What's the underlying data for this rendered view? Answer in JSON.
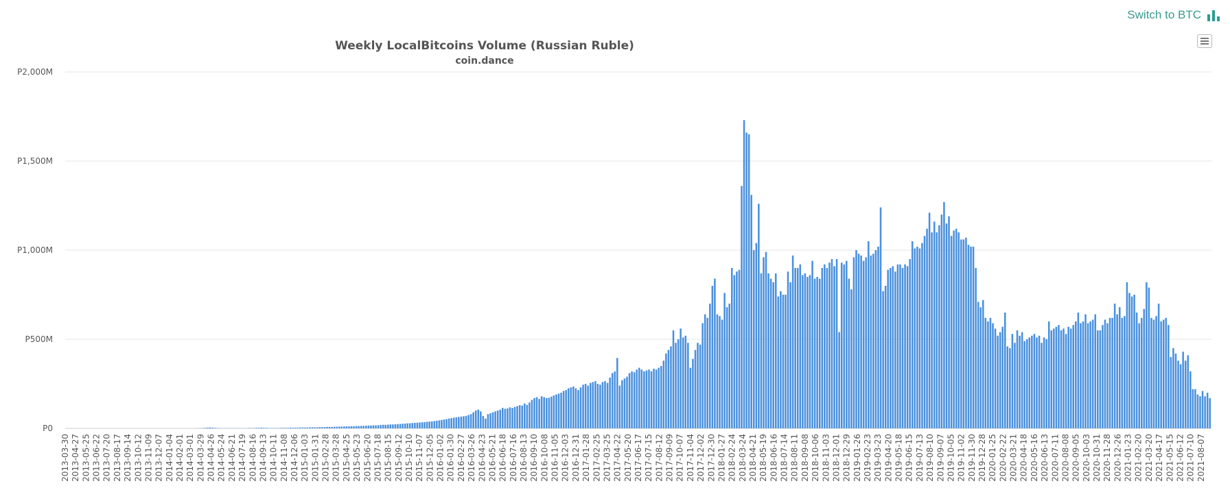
{
  "header": {
    "switch_label": "Switch to BTC",
    "switch_icon": "bar-chart-icon",
    "menu_icon": "hamburger-menu-icon"
  },
  "colors": {
    "bar": "#4a90dd",
    "accent": "#2a9d8f",
    "grid": "#e6e6e6",
    "text": "#555555"
  },
  "chart_data": {
    "type": "bar",
    "title": "Weekly LocalBitcoins Volume (Russian Ruble)",
    "subtitle": "coin.dance",
    "xlabel": "",
    "ylabel": "",
    "ylim": [
      0,
      2000
    ],
    "yticks": [
      {
        "value": 0,
        "label": "P0"
      },
      {
        "value": 500,
        "label": "P500M"
      },
      {
        "value": 1000,
        "label": "P1,000M"
      },
      {
        "value": 1500,
        "label": "P1,500M"
      },
      {
        "value": 2000,
        "label": "P2,000M"
      }
    ],
    "grid": true,
    "legend": "none",
    "x_tick_labels": [
      "2013-03-30",
      "2013-04-27",
      "2013-05-25",
      "2013-06-22",
      "2013-07-20",
      "2013-08-17",
      "2013-09-14",
      "2013-10-12",
      "2013-11-09",
      "2013-12-07",
      "2014-01-04",
      "2014-02-01",
      "2014-03-01",
      "2014-03-29",
      "2014-04-26",
      "2014-05-24",
      "2014-06-21",
      "2014-07-19",
      "2014-08-16",
      "2014-09-13",
      "2014-10-11",
      "2014-11-08",
      "2014-12-06",
      "2015-01-03",
      "2015-01-31",
      "2015-02-28",
      "2015-03-28",
      "2015-04-25",
      "2015-05-23",
      "2015-06-20",
      "2015-07-18",
      "2015-08-15",
      "2015-09-12",
      "2015-10-10",
      "2015-11-07",
      "2015-12-05",
      "2016-01-02",
      "2016-01-30",
      "2016-02-27",
      "2016-03-26",
      "2016-04-23",
      "2016-05-21",
      "2016-06-18",
      "2016-07-16",
      "2016-08-13",
      "2016-09-10",
      "2016-10-08",
      "2016-11-05",
      "2016-12-03",
      "2016-12-31",
      "2017-01-28",
      "2017-02-25",
      "2017-03-25",
      "2017-04-22",
      "2017-05-20",
      "2017-06-17",
      "2017-07-15",
      "2017-08-12",
      "2017-09-09",
      "2017-10-07",
      "2017-11-04",
      "2017-12-02",
      "2017-12-30",
      "2018-01-27",
      "2018-02-24",
      "2018-03-24",
      "2018-04-21",
      "2018-05-19",
      "2018-06-16",
      "2018-07-14",
      "2018-08-11",
      "2018-09-08",
      "2018-10-06",
      "2018-11-03",
      "2018-12-01",
      "2018-12-29",
      "2019-01-26",
      "2019-02-23",
      "2019-03-23",
      "2019-04-20",
      "2019-05-18",
      "2019-06-15",
      "2019-07-13",
      "2019-08-10",
      "2019-09-07",
      "2019-10-05",
      "2019-11-02",
      "2019-11-30",
      "2019-12-28",
      "2020-01-25",
      "2020-02-22",
      "2020-03-21",
      "2020-04-18",
      "2020-05-16",
      "2020-06-13",
      "2020-07-11",
      "2020-08-08",
      "2020-09-05",
      "2020-10-03",
      "2020-10-31",
      "2020-11-28",
      "2020-12-26",
      "2021-01-23",
      "2021-02-20",
      "2021-03-20",
      "2021-04-17",
      "2021-05-15",
      "2021-06-12",
      "2021-07-10",
      "2021-08-07"
    ],
    "values": [
      0,
      0,
      0,
      0,
      0,
      0,
      0,
      0,
      0,
      0,
      0,
      0,
      0,
      0,
      0,
      0,
      0,
      0,
      0,
      0,
      0,
      0,
      0,
      0,
      0,
      0,
      0,
      0,
      0,
      0,
      0,
      0,
      0,
      0,
      0,
      0,
      0,
      0,
      0,
      0,
      0,
      0,
      0,
      0,
      0,
      0,
      0,
      0,
      0,
      0,
      0,
      0,
      0,
      0,
      1,
      1,
      2,
      3,
      4,
      5,
      4,
      3,
      2,
      1,
      1,
      1,
      1,
      1,
      1,
      1,
      1,
      1,
      1,
      1,
      1,
      2,
      2,
      2,
      3,
      3,
      4,
      3,
      3,
      2,
      2,
      2,
      2,
      2,
      3,
      3,
      3,
      3,
      4,
      4,
      4,
      4,
      5,
      5,
      5,
      5,
      6,
      6,
      6,
      6,
      7,
      7,
      7,
      8,
      8,
      8,
      9,
      9,
      10,
      10,
      11,
      11,
      11,
      12,
      12,
      13,
      13,
      14,
      14,
      15,
      16,
      16,
      17,
      17,
      18,
      19,
      20,
      20,
      21,
      22,
      22,
      23,
      24,
      25,
      26,
      27,
      28,
      29,
      30,
      31,
      32,
      33,
      34,
      35,
      37,
      38,
      39,
      41,
      43,
      45,
      47,
      50,
      52,
      55,
      58,
      60,
      62,
      64,
      66,
      68,
      70,
      75,
      80,
      90,
      100,
      105,
      95,
      70,
      55,
      80,
      85,
      90,
      95,
      100,
      105,
      115,
      110,
      112,
      118,
      115,
      120,
      125,
      130,
      128,
      140,
      132,
      145,
      160,
      170,
      175,
      165,
      180,
      175,
      170,
      172,
      178,
      185,
      190,
      195,
      200,
      210,
      215,
      225,
      230,
      235,
      225,
      215,
      230,
      245,
      250,
      240,
      255,
      260,
      265,
      250,
      245,
      260,
      265,
      255,
      285,
      310,
      320,
      395,
      240,
      270,
      280,
      290,
      310,
      320,
      315,
      330,
      340,
      330,
      320,
      325,
      330,
      320,
      335,
      330,
      340,
      350,
      380,
      420,
      440,
      460,
      550,
      480,
      500,
      560,
      510,
      520,
      480,
      340,
      390,
      440,
      480,
      470,
      590,
      640,
      620,
      700,
      800,
      840,
      640,
      630,
      610,
      760,
      680,
      700,
      900,
      860,
      880,
      890,
      1360,
      1730,
      1660,
      1650,
      1310,
      1000,
      1040,
      1260,
      870,
      960,
      990,
      870,
      840,
      820,
      870,
      740,
      770,
      750,
      750,
      880,
      820,
      970,
      900,
      900,
      920,
      860,
      870,
      850,
      860,
      940,
      840,
      850,
      840,
      900,
      920,
      900,
      930,
      950,
      910,
      950,
      540,
      930,
      920,
      940,
      840,
      780,
      960,
      1000,
      980,
      970,
      940,
      960,
      1050,
      970,
      980,
      1000,
      1020,
      1240,
      770,
      800,
      890,
      900,
      910,
      880,
      920,
      920,
      900,
      920,
      910,
      950,
      1050,
      1010,
      1020,
      1010,
      1040,
      1080,
      1120,
      1210,
      1100,
      1160,
      1100,
      1140,
      1200,
      1270,
      1150,
      1190,
      1080,
      1110,
      1120,
      1100,
      1060,
      1060,
      1070,
      1030,
      1020,
      1020,
      900,
      710,
      680,
      720,
      620,
      600,
      620,
      590,
      560,
      520,
      540,
      570,
      650,
      460,
      450,
      530,
      480,
      550,
      520,
      540,
      490,
      500,
      510,
      520,
      530,
      510,
      520,
      480,
      510,
      500,
      600,
      550,
      560,
      570,
      580,
      550,
      560,
      530,
      570,
      560,
      580,
      600,
      650,
      590,
      600,
      640,
      590,
      600,
      610,
      640,
      550,
      550,
      580,
      610,
      590,
      620,
      620,
      700,
      640,
      680,
      620,
      630,
      820,
      760,
      740,
      750,
      650,
      590,
      620,
      670,
      820,
      790,
      620,
      610,
      630,
      700,
      600,
      610,
      620,
      580,
      400,
      450,
      420,
      380,
      360,
      430,
      380,
      410,
      320,
      220,
      220,
      190,
      180,
      210,
      180,
      200,
      170
    ]
  }
}
